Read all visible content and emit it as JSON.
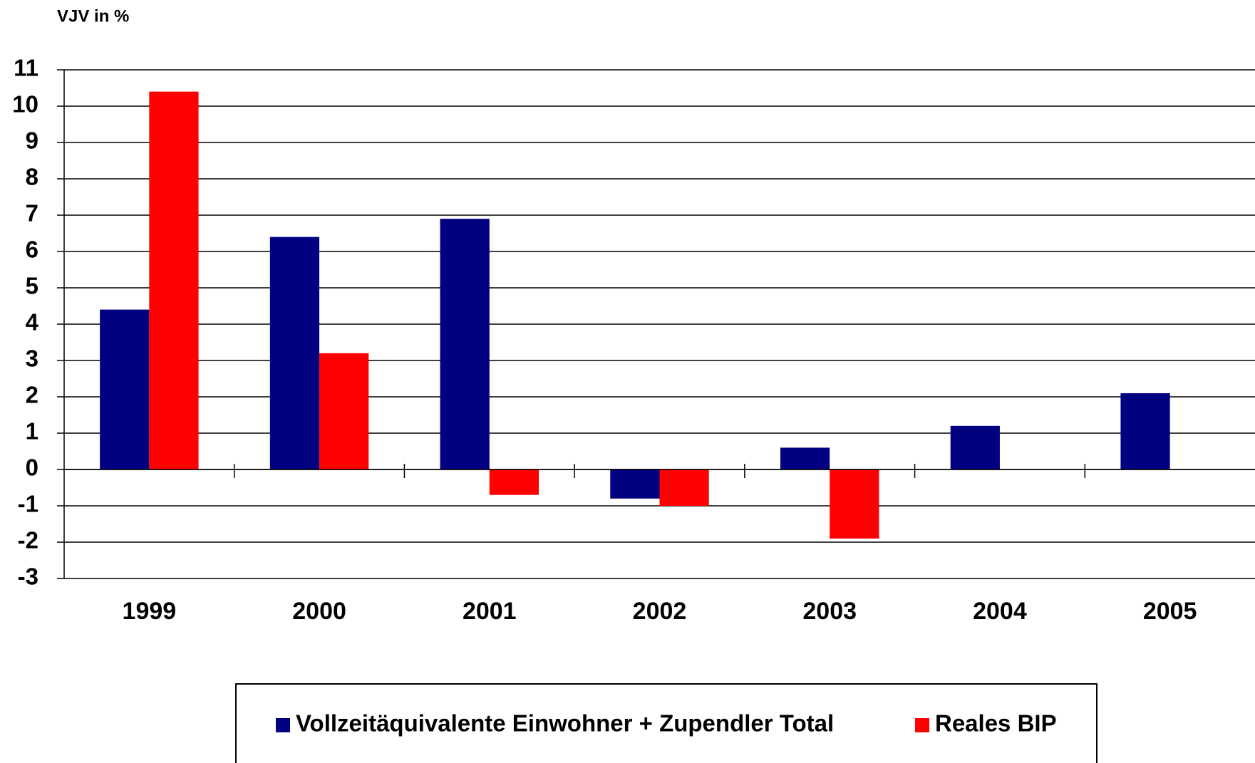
{
  "chart_data": {
    "type": "bar",
    "y_label": "VJV in %",
    "categories": [
      "1999",
      "2000",
      "2001",
      "2002",
      "2003",
      "2004",
      "2005"
    ],
    "series": [
      {
        "name": "Vollzeitäquivalente Einwohner + Zupendler Total",
        "color": "#000080",
        "values": [
          4.4,
          6.4,
          6.9,
          -0.8,
          0.6,
          1.2,
          2.1
        ]
      },
      {
        "name": "Reales BIP",
        "color": "#ff0000",
        "values": [
          10.4,
          3.2,
          -0.7,
          -1.0,
          -1.9,
          null,
          null
        ]
      }
    ],
    "ylim": [
      -3,
      11
    ],
    "yticks": [
      -3,
      -2,
      -1,
      0,
      1,
      2,
      3,
      4,
      5,
      6,
      7,
      8,
      9,
      10,
      11
    ],
    "grid": true
  }
}
